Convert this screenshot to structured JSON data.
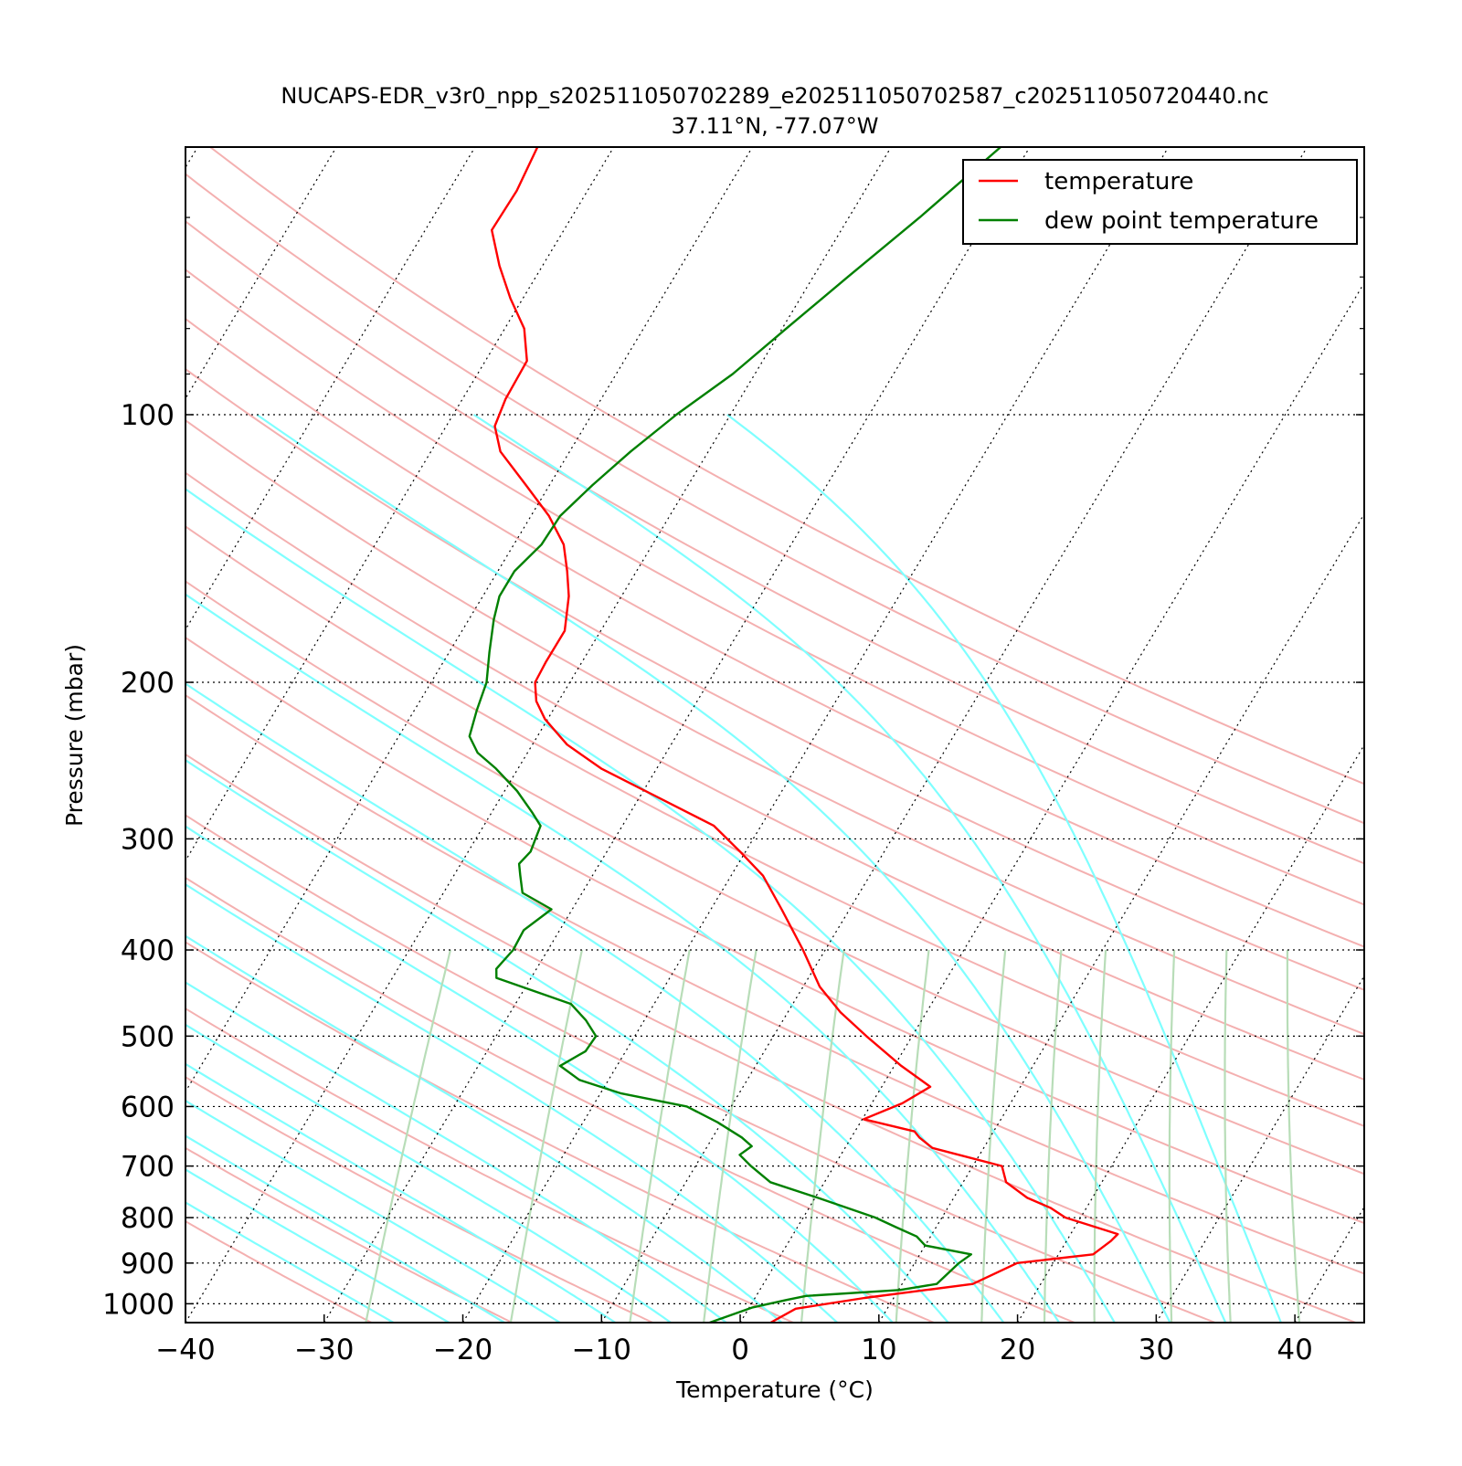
{
  "chart_data": {
    "type": "line",
    "title": "NUCAPS-EDR_v3r0_npp_s202511050702289_e202511050702587_c202511050720440.nc",
    "subtitle": "37.11°N, -77.07°W",
    "xlabel": "Temperature (°C)",
    "ylabel": "Pressure (mbar)",
    "xlim": [
      -40,
      45
    ],
    "ylim": [
      1050,
      50
    ],
    "y_scale": "log",
    "x_ticks": [
      "−40",
      "−30",
      "−20",
      "−10",
      "0",
      "10",
      "20",
      "30",
      "40"
    ],
    "y_ticks": [
      "100",
      "200",
      "300",
      "400",
      "500",
      "600",
      "700",
      "800",
      "900",
      "1000"
    ],
    "grid": "dotted horizontal isobars and skewed isotherms",
    "legend_position": "top-right",
    "colors": {
      "temperature": "#ff0000",
      "dew point temperature": "#008000",
      "dry_adiabats": "#f4b0b0",
      "moist_adiabats": "#7fffff",
      "mixing_ratio_lines": "#b8ddb8"
    },
    "series": [
      {
        "name": "temperature",
        "color": "#ff0000",
        "points": [
          {
            "p": 1050,
            "t": 2.2
          },
          {
            "p": 1013,
            "t": 3.4
          },
          {
            "p": 985,
            "t": 7.9
          },
          {
            "p": 950,
            "t": 15.1
          },
          {
            "p": 900,
            "t": 17.4
          },
          {
            "p": 880,
            "t": 22.5
          },
          {
            "p": 850,
            "t": 23.2
          },
          {
            "p": 835,
            "t": 23.4
          },
          {
            "p": 800,
            "t": 18.9
          },
          {
            "p": 780,
            "t": 17.4
          },
          {
            "p": 760,
            "t": 15.3
          },
          {
            "p": 730,
            "t": 13.1
          },
          {
            "p": 700,
            "t": 12.1
          },
          {
            "p": 668,
            "t": 6.3
          },
          {
            "p": 650,
            "t": 4.9
          },
          {
            "p": 640,
            "t": 4.3
          },
          {
            "p": 620,
            "t": 0.1
          },
          {
            "p": 595,
            "t": 2.2
          },
          {
            "p": 570,
            "t": 3.5
          },
          {
            "p": 540,
            "t": 0.5
          },
          {
            "p": 500,
            "t": -3.3
          },
          {
            "p": 470,
            "t": -6.2
          },
          {
            "p": 440,
            "t": -8.8
          },
          {
            "p": 400,
            "t": -11.6
          },
          {
            "p": 360,
            "t": -14.9
          },
          {
            "p": 330,
            "t": -17.7
          },
          {
            "p": 310,
            "t": -20.4
          },
          {
            "p": 290,
            "t": -23.4
          },
          {
            "p": 270,
            "t": -28.5
          },
          {
            "p": 250,
            "t": -34.0
          },
          {
            "p": 235,
            "t": -37.5
          },
          {
            "p": 220,
            "t": -40.2
          },
          {
            "p": 210,
            "t": -41.6
          },
          {
            "p": 200,
            "t": -42.5
          },
          {
            "p": 190,
            "t": -42.6
          },
          {
            "p": 175,
            "t": -42.6
          },
          {
            "p": 160,
            "t": -43.8
          },
          {
            "p": 150,
            "t": -45.0
          },
          {
            "p": 140,
            "t": -46.4
          },
          {
            "p": 130,
            "t": -48.7
          },
          {
            "p": 120,
            "t": -51.7
          },
          {
            "p": 110,
            "t": -55.0
          },
          {
            "p": 103,
            "t": -56.5
          },
          {
            "p": 96,
            "t": -56.9
          },
          {
            "p": 87,
            "t": -57.0
          },
          {
            "p": 80,
            "t": -58.6
          },
          {
            "p": 74,
            "t": -60.9
          },
          {
            "p": 68,
            "t": -63.1
          },
          {
            "p": 62,
            "t": -65.2
          },
          {
            "p": 56,
            "t": -65.1
          },
          {
            "p": 50,
            "t": -65.5
          }
        ]
      },
      {
        "name": "dew point temperature",
        "color": "#008000",
        "points": [
          {
            "p": 1050,
            "t": -2.2
          },
          {
            "p": 1010,
            "t": 0.2
          },
          {
            "p": 990,
            "t": 2.4
          },
          {
            "p": 980,
            "t": 3.6
          },
          {
            "p": 965,
            "t": 10.1
          },
          {
            "p": 950,
            "t": 12.5
          },
          {
            "p": 900,
            "t": 13.2
          },
          {
            "p": 880,
            "t": 13.7
          },
          {
            "p": 860,
            "t": 10.0
          },
          {
            "p": 840,
            "t": 9.0
          },
          {
            "p": 820,
            "t": 7.1
          },
          {
            "p": 800,
            "t": 5.2
          },
          {
            "p": 760,
            "t": 0.2
          },
          {
            "p": 730,
            "t": -3.9
          },
          {
            "p": 700,
            "t": -6.0
          },
          {
            "p": 680,
            "t": -7.3
          },
          {
            "p": 665,
            "t": -6.8
          },
          {
            "p": 650,
            "t": -7.9
          },
          {
            "p": 625,
            "t": -10.3
          },
          {
            "p": 600,
            "t": -13.2
          },
          {
            "p": 580,
            "t": -18.5
          },
          {
            "p": 560,
            "t": -22.1
          },
          {
            "p": 540,
            "t": -24.1
          },
          {
            "p": 520,
            "t": -22.9
          },
          {
            "p": 500,
            "t": -22.8
          },
          {
            "p": 480,
            "t": -24.2
          },
          {
            "p": 460,
            "t": -26.0
          },
          {
            "p": 430,
            "t": -32.5
          },
          {
            "p": 420,
            "t": -32.9
          },
          {
            "p": 400,
            "t": -32.5
          },
          {
            "p": 380,
            "t": -32.6
          },
          {
            "p": 360,
            "t": -31.5
          },
          {
            "p": 345,
            "t": -34.3
          },
          {
            "p": 330,
            "t": -35.2
          },
          {
            "p": 320,
            "t": -35.8
          },
          {
            "p": 310,
            "t": -35.5
          },
          {
            "p": 300,
            "t": -35.7
          },
          {
            "p": 290,
            "t": -35.9
          },
          {
            "p": 280,
            "t": -37.1
          },
          {
            "p": 265,
            "t": -39.1
          },
          {
            "p": 250,
            "t": -41.6
          },
          {
            "p": 240,
            "t": -43.6
          },
          {
            "p": 230,
            "t": -44.9
          },
          {
            "p": 215,
            "t": -45.5
          },
          {
            "p": 200,
            "t": -46.0
          },
          {
            "p": 185,
            "t": -47.1
          },
          {
            "p": 170,
            "t": -48.2
          },
          {
            "p": 160,
            "t": -48.8
          },
          {
            "p": 150,
            "t": -48.8
          },
          {
            "p": 140,
            "t": -48.0
          },
          {
            "p": 130,
            "t": -47.9
          },
          {
            "p": 120,
            "t": -46.9
          },
          {
            "p": 110,
            "t": -45.6
          },
          {
            "p": 100,
            "t": -43.9
          },
          {
            "p": 90,
            "t": -41.6
          },
          {
            "p": 80,
            "t": -39.7
          },
          {
            "p": 70,
            "t": -37.5
          },
          {
            "p": 60,
            "t": -34.9
          },
          {
            "p": 50,
            "t": -32.1
          }
        ]
      }
    ]
  }
}
